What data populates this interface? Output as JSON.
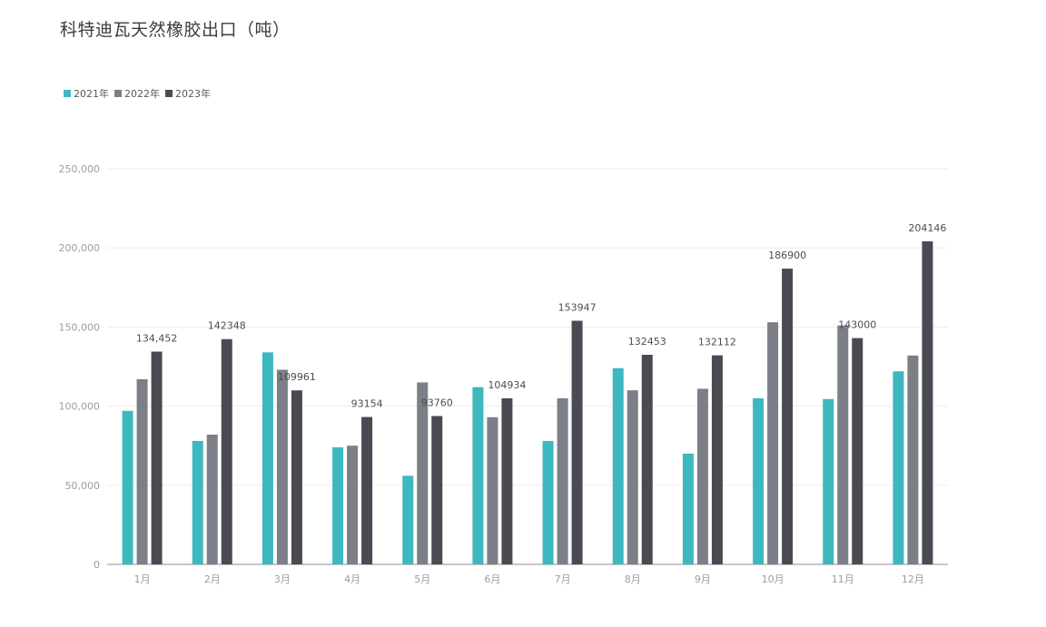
{
  "chart_data": {
    "type": "bar",
    "title": "科特迪瓦天然橡胶出口（吨）",
    "categories": [
      "1月",
      "2月",
      "3月",
      "4月",
      "5月",
      "6月",
      "7月",
      "8月",
      "9月",
      "10月",
      "11月",
      "12月"
    ],
    "series": [
      {
        "name": "2021年",
        "color": "#3db8bf",
        "values": [
          97000,
          78000,
          134000,
          74000,
          56000,
          112000,
          78000,
          124000,
          70000,
          105000,
          104500,
          122000
        ]
      },
      {
        "name": "2022年",
        "color": "#7c7f87",
        "values": [
          117000,
          82000,
          123000,
          75000,
          115000,
          93000,
          105000,
          110000,
          111000,
          153000,
          151000,
          132000
        ]
      },
      {
        "name": "2023年",
        "color": "#4a4b52",
        "values": [
          134452,
          142348,
          109961,
          93154,
          93760,
          104934,
          153947,
          132453,
          132112,
          186900,
          143000,
          204146
        ],
        "labels": [
          "134,452",
          "142348",
          "109961",
          "93154",
          "93760",
          "104934",
          "153947",
          "132453",
          "132112",
          "186900",
          "143000",
          "204146"
        ]
      }
    ],
    "yticks": [
      "0",
      "50,000",
      "100,000",
      "150,000",
      "200,000",
      "250,000"
    ],
    "ylim": [
      0,
      250000
    ],
    "xlabel": "",
    "ylabel": "",
    "grid": true,
    "legend_position": "top-left"
  }
}
